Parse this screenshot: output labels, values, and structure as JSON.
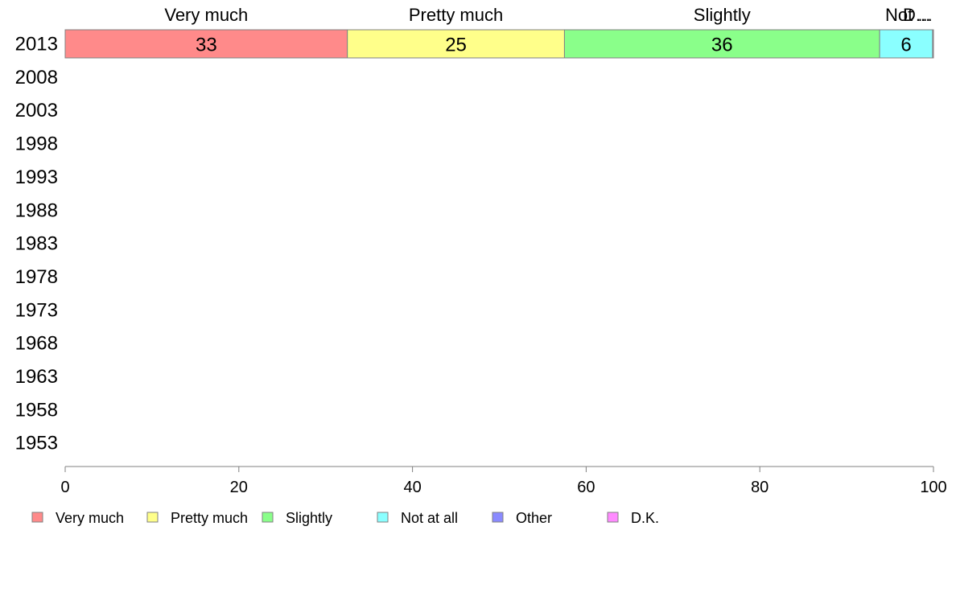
{
  "chart_data": {
    "type": "bar",
    "orientation": "horizontal",
    "stacked": true,
    "categories": [
      "2013",
      "2008",
      "2003",
      "1998",
      "1993",
      "1988",
      "1983",
      "1978",
      "1973",
      "1968",
      "1963",
      "1958",
      "1953"
    ],
    "series": [
      {
        "name": "Very much",
        "color": "#ff8a8a",
        "values": [
          32.5,
          null,
          null,
          null,
          null,
          null,
          null,
          null,
          null,
          null,
          null,
          null,
          null
        ],
        "labels": [
          "33"
        ]
      },
      {
        "name": "Pretty much",
        "color": "#ffff8a",
        "values": [
          25,
          null,
          null,
          null,
          null,
          null,
          null,
          null,
          null,
          null,
          null,
          null,
          null
        ],
        "labels": [
          "25"
        ]
      },
      {
        "name": "Slightly",
        "color": "#8aff8a",
        "values": [
          36.3,
          null,
          null,
          null,
          null,
          null,
          null,
          null,
          null,
          null,
          null,
          null,
          null
        ],
        "labels": [
          "36"
        ]
      },
      {
        "name": "Not at all",
        "color": "#8affff",
        "values": [
          6.1,
          null,
          null,
          null,
          null,
          null,
          null,
          null,
          null,
          null,
          null,
          null,
          null
        ],
        "labels": [
          "6"
        ]
      },
      {
        "name": "Other",
        "color": "#8a8aff",
        "values": [
          0,
          null,
          null,
          null,
          null,
          null,
          null,
          null,
          null,
          null,
          null,
          null,
          null
        ],
        "labels": [
          ""
        ]
      },
      {
        "name": "D.K.",
        "color": "#ff8aff",
        "values": [
          0.1,
          null,
          null,
          null,
          null,
          null,
          null,
          null,
          null,
          null,
          null,
          null,
          null
        ],
        "labels": [
          ""
        ]
      }
    ],
    "top_labels": [
      "Very much",
      "Pretty much",
      "Slightly",
      "Not ...",
      "D..."
    ],
    "xticks": [
      "0",
      "20",
      "40",
      "60",
      "80",
      "100"
    ],
    "xlim": [
      0,
      100
    ],
    "legend": {
      "position": "bottom",
      "items": [
        "Very much",
        "Pretty much",
        "Slightly",
        "Not at all",
        "Other",
        "D.K."
      ]
    },
    "grid": false
  }
}
